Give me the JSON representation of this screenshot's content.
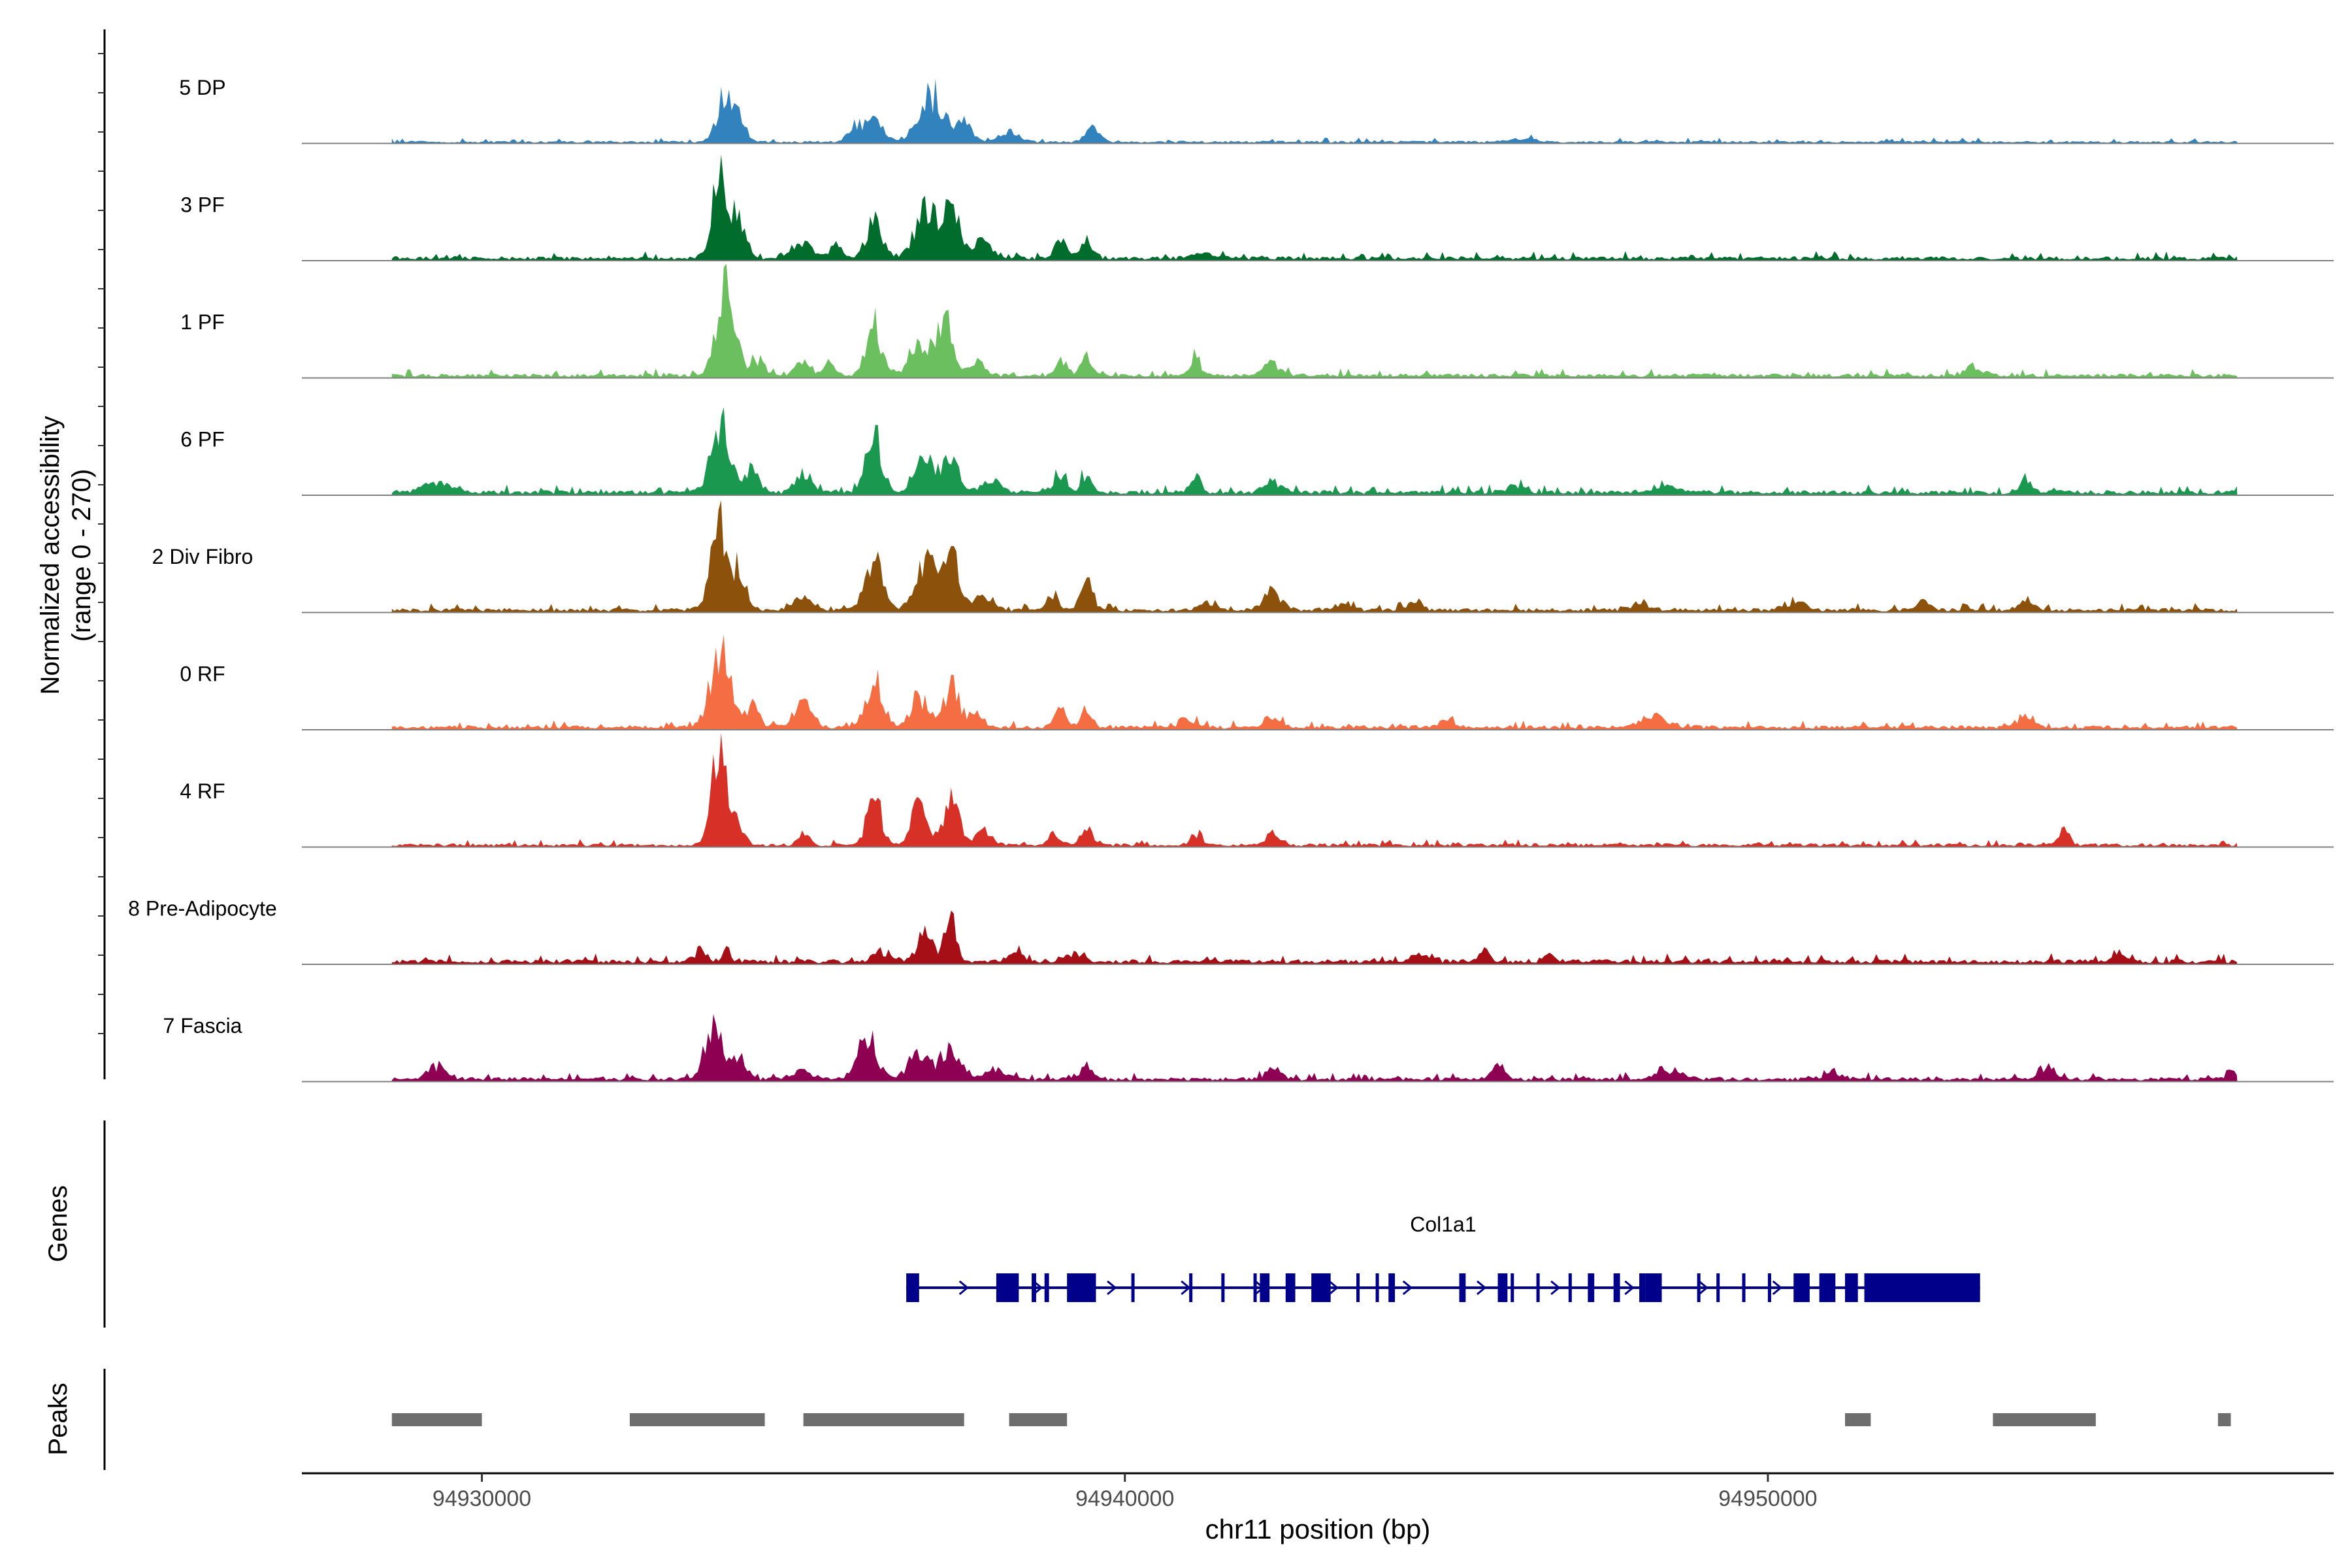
{
  "chart_data": {
    "type": "coverage",
    "ylabel": "Normalized accessibility\n(range 0 - 270)",
    "xlabel": "chr11 position (bp)",
    "ylim": [
      0,
      270
    ],
    "xlim": [
      94927200,
      94958800
    ],
    "x_ticks": [
      94930000,
      94940000,
      94950000
    ],
    "x_tick_labels": [
      "94930000",
      "94940000",
      "94950000"
    ],
    "track_start": 94928600,
    "track_end": 94957300,
    "series": [
      {
        "name": "5 DP",
        "color": "#3182BD",
        "noise": 0.018,
        "peaks": [
          [
            94933800,
            110,
            130
          ],
          [
            94934000,
            60,
            90
          ],
          [
            94935800,
            35,
            100
          ],
          [
            94936100,
            45,
            150
          ],
          [
            94937000,
            110,
            180
          ],
          [
            94937500,
            55,
            120
          ],
          [
            94938200,
            25,
            150
          ],
          [
            94939500,
            30,
            110
          ],
          [
            94946200,
            8,
            200
          ]
        ]
      },
      {
        "name": "3 PF",
        "color": "#006D2C",
        "noise": 0.03,
        "peaks": [
          [
            94933700,
            180,
            120
          ],
          [
            94934000,
            90,
            110
          ],
          [
            94935000,
            35,
            150
          ],
          [
            94935500,
            30,
            100
          ],
          [
            94936100,
            95,
            120
          ],
          [
            94936900,
            110,
            160
          ],
          [
            94937300,
            120,
            140
          ],
          [
            94937800,
            40,
            130
          ],
          [
            94939000,
            40,
            100
          ],
          [
            94939400,
            45,
            90
          ],
          [
            94941200,
            12,
            150
          ]
        ]
      },
      {
        "name": "1 PF",
        "color": "#6BBF5E",
        "noise": 0.03,
        "peaks": [
          [
            94933800,
            220,
            140
          ],
          [
            94934300,
            40,
            90
          ],
          [
            94935000,
            40,
            100
          ],
          [
            94935400,
            30,
            90
          ],
          [
            94936100,
            110,
            120
          ],
          [
            94936800,
            90,
            140
          ],
          [
            94937200,
            120,
            120
          ],
          [
            94937700,
            30,
            120
          ],
          [
            94939000,
            40,
            80
          ],
          [
            94939400,
            50,
            80
          ],
          [
            94941100,
            45,
            80
          ],
          [
            94942300,
            30,
            120
          ],
          [
            94953200,
            20,
            150
          ]
        ]
      },
      {
        "name": "6 PF",
        "color": "#1A9850",
        "noise": 0.035,
        "peaks": [
          [
            94929300,
            25,
            200
          ],
          [
            94933700,
            170,
            140
          ],
          [
            94934200,
            60,
            110
          ],
          [
            94935000,
            45,
            120
          ],
          [
            94936100,
            130,
            120
          ],
          [
            94936900,
            80,
            160
          ],
          [
            94937300,
            80,
            120
          ],
          [
            94937900,
            30,
            150
          ],
          [
            94939000,
            40,
            90
          ],
          [
            94939400,
            40,
            80
          ],
          [
            94941100,
            45,
            70
          ],
          [
            94942300,
            25,
            130
          ],
          [
            94946100,
            15,
            150
          ],
          [
            94948400,
            15,
            200
          ],
          [
            94954000,
            30,
            100
          ]
        ]
      },
      {
        "name": "2 Div Fibro",
        "color": "#8C510A",
        "noise": 0.03,
        "peaks": [
          [
            94933700,
            200,
            140
          ],
          [
            94934000,
            70,
            110
          ],
          [
            94935000,
            30,
            150
          ],
          [
            94936100,
            120,
            130
          ],
          [
            94936900,
            110,
            160
          ],
          [
            94937300,
            120,
            140
          ],
          [
            94937800,
            35,
            130
          ],
          [
            94938900,
            40,
            80
          ],
          [
            94939400,
            70,
            90
          ],
          [
            94941300,
            20,
            120
          ],
          [
            94942300,
            45,
            140
          ],
          [
            94943400,
            15,
            120
          ],
          [
            94944500,
            25,
            110
          ],
          [
            94948000,
            12,
            150
          ],
          [
            94950400,
            20,
            150
          ],
          [
            94952400,
            20,
            110
          ],
          [
            94954000,
            30,
            110
          ]
        ]
      },
      {
        "name": "0 RF",
        "color": "#F46D43",
        "noise": 0.03,
        "peaks": [
          [
            94933700,
            180,
            150
          ],
          [
            94934200,
            50,
            110
          ],
          [
            94935000,
            70,
            130
          ],
          [
            94936100,
            110,
            130
          ],
          [
            94936800,
            70,
            140
          ],
          [
            94937300,
            100,
            120
          ],
          [
            94937700,
            30,
            120
          ],
          [
            94939000,
            45,
            80
          ],
          [
            94939400,
            45,
            80
          ],
          [
            94941000,
            15,
            120
          ],
          [
            94942300,
            20,
            130
          ],
          [
            94945000,
            12,
            150
          ],
          [
            94948200,
            25,
            200
          ],
          [
            94954000,
            25,
            120
          ]
        ]
      },
      {
        "name": "4 RF",
        "color": "#D73027",
        "noise": 0.025,
        "peaks": [
          [
            94933700,
            230,
            120
          ],
          [
            94934000,
            40,
            90
          ],
          [
            94935000,
            30,
            80
          ],
          [
            94936100,
            120,
            110
          ],
          [
            94936800,
            90,
            120
          ],
          [
            94937300,
            110,
            120
          ],
          [
            94937800,
            40,
            110
          ],
          [
            94938900,
            25,
            90
          ],
          [
            94939400,
            50,
            80
          ],
          [
            94941100,
            25,
            80
          ],
          [
            94942300,
            35,
            90
          ],
          [
            94954600,
            35,
            90
          ]
        ]
      },
      {
        "name": "8 Pre-Adipocyte",
        "color": "#A50F15",
        "noise": 0.035,
        "peaks": [
          [
            94933400,
            30,
            90
          ],
          [
            94933800,
            30,
            60
          ],
          [
            94936200,
            25,
            120
          ],
          [
            94936900,
            60,
            130
          ],
          [
            94937300,
            110,
            80
          ],
          [
            94938300,
            18,
            120
          ],
          [
            94939200,
            18,
            150
          ],
          [
            94944600,
            25,
            110
          ],
          [
            94945600,
            25,
            70
          ],
          [
            94946600,
            22,
            80
          ],
          [
            94955500,
            20,
            100
          ]
        ]
      },
      {
        "name": "7 Fascia",
        "color": "#8E0152",
        "noise": 0.03,
        "peaks": [
          [
            94929300,
            30,
            150
          ],
          [
            94933600,
            130,
            130
          ],
          [
            94934000,
            50,
            100
          ],
          [
            94935000,
            20,
            150
          ],
          [
            94936000,
            100,
            140
          ],
          [
            94936800,
            70,
            150
          ],
          [
            94937300,
            80,
            140
          ],
          [
            94938000,
            25,
            150
          ],
          [
            94939400,
            35,
            90
          ],
          [
            94942300,
            25,
            130
          ],
          [
            94945800,
            45,
            90
          ],
          [
            94948500,
            20,
            200
          ],
          [
            94951000,
            15,
            150
          ],
          [
            94954300,
            25,
            120
          ],
          [
            94957200,
            25,
            60
          ]
        ]
      }
    ],
    "genes": {
      "label": "Genes",
      "name": "Col1a1",
      "color": "#00008B",
      "start": 94936600,
      "end": 94953300,
      "strand": "+",
      "exons": [
        [
          94936600,
          94936800
        ],
        [
          94938000,
          94938350
        ],
        [
          94938550,
          94938620
        ],
        [
          94938750,
          94938820
        ],
        [
          94939100,
          94939550
        ],
        [
          94940100,
          94940150
        ],
        [
          94941000,
          94941050
        ],
        [
          94941500,
          94941550
        ],
        [
          94942000,
          94942050
        ],
        [
          94942100,
          94942250
        ],
        [
          94942500,
          94942650
        ],
        [
          94942900,
          94943200
        ],
        [
          94943600,
          94943650
        ],
        [
          94943900,
          94943950
        ],
        [
          94944100,
          94944200
        ],
        [
          94945200,
          94945300
        ],
        [
          94945800,
          94945950
        ],
        [
          94946000,
          94946050
        ],
        [
          94946400,
          94946450
        ],
        [
          94946900,
          94946950
        ],
        [
          94947200,
          94947300
        ],
        [
          94947600,
          94947700
        ],
        [
          94948000,
          94948100
        ],
        [
          94948100,
          94948350
        ],
        [
          94948900,
          94948950
        ],
        [
          94949200,
          94949250
        ],
        [
          94949600,
          94949650
        ],
        [
          94950000,
          94950050
        ],
        [
          94950400,
          94950650
        ],
        [
          94950800,
          94951050
        ],
        [
          94951200,
          94951400
        ],
        [
          94951500,
          94953300
        ]
      ]
    },
    "peaks": {
      "label": "Peaks",
      "color": "#6E6E6E",
      "intervals": [
        [
          94928600,
          94930000
        ],
        [
          94932300,
          94934400
        ],
        [
          94935000,
          94937500
        ],
        [
          94938200,
          94939100
        ],
        [
          94951200,
          94951600
        ],
        [
          94953500,
          94955100
        ],
        [
          94957000,
          94957200
        ]
      ]
    }
  }
}
